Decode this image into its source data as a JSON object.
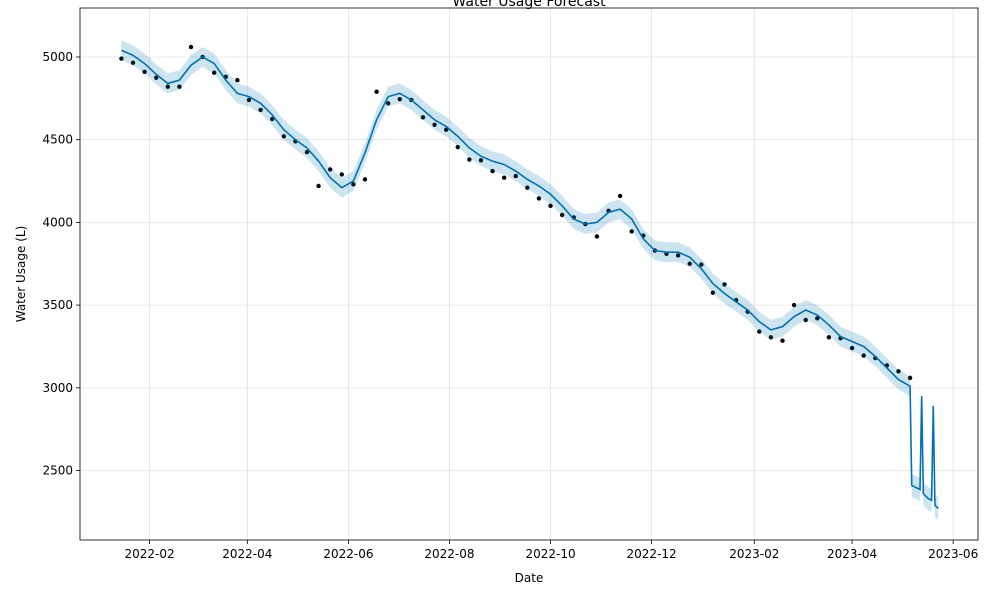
{
  "chart_data": {
    "type": "line",
    "title": "Water Usage Forecast",
    "xlabel": "Date",
    "ylabel": "Water Usage (L)",
    "xlim": [
      18982,
      19524
    ],
    "ylim": [
      2080,
      5296
    ],
    "xticks": [
      {
        "value": 19024,
        "label": "2022-02"
      },
      {
        "value": 19083,
        "label": "2022-04"
      },
      {
        "value": 19144,
        "label": "2022-06"
      },
      {
        "value": 19205,
        "label": "2022-08"
      },
      {
        "value": 19266,
        "label": "2022-10"
      },
      {
        "value": 19327,
        "label": "2022-12"
      },
      {
        "value": 19389,
        "label": "2023-02"
      },
      {
        "value": 19448,
        "label": "2023-04"
      },
      {
        "value": 19509,
        "label": "2023-06"
      }
    ],
    "yticks": [
      2500,
      3000,
      3500,
      4000,
      4500,
      5000
    ],
    "grid": true,
    "series": [
      {
        "style": "points",
        "color": "#000000",
        "x": [
          19007,
          19014,
          19021,
          19028,
          19035,
          19042,
          19049,
          19056,
          19063,
          19070,
          19077,
          19084,
          19091,
          19098,
          19105,
          19112,
          19119,
          19126,
          19133,
          19140,
          19147,
          19154,
          19161,
          19168,
          19175,
          19182,
          19189,
          19196,
          19203,
          19210,
          19217,
          19224,
          19231,
          19238,
          19245,
          19252,
          19259,
          19266,
          19273,
          19280,
          19287,
          19294,
          19301,
          19308,
          19315,
          19322,
          19329,
          19336,
          19343,
          19350,
          19357,
          19364,
          19371,
          19378,
          19385,
          19392,
          19399,
          19406,
          19413,
          19420,
          19427,
          19434,
          19441,
          19448,
          19455,
          19462,
          19469,
          19476,
          19483
        ],
        "values": [
          4990,
          4965,
          4910,
          4875,
          4820,
          4820,
          5060,
          5000,
          4905,
          4880,
          4860,
          4740,
          4680,
          4625,
          4520,
          4490,
          4425,
          4220,
          4320,
          4290,
          4230,
          4260,
          4790,
          4720,
          4745,
          4740,
          4635,
          4590,
          4560,
          4455,
          4380,
          4375,
          4310,
          4270,
          4280,
          4210,
          4145,
          4100,
          4045,
          4030,
          3990,
          3915,
          4070,
          4160,
          3945,
          3920,
          3830,
          3810,
          3800,
          3750,
          3745,
          3575,
          3625,
          3530,
          3460,
          3340,
          3305,
          3285,
          3500,
          3410,
          3420,
          3305,
          3300,
          3240,
          3195,
          3180,
          3135,
          3100,
          3060
        ]
      },
      {
        "style": "line",
        "color": "#0072B2",
        "x": [
          19007,
          19014,
          19021,
          19028,
          19035,
          19042,
          19049,
          19056,
          19063,
          19070,
          19077,
          19084,
          19091,
          19098,
          19105,
          19112,
          19119,
          19126,
          19133,
          19140,
          19147,
          19154,
          19161,
          19168,
          19175,
          19182,
          19189,
          19196,
          19203,
          19210,
          19217,
          19224,
          19231,
          19238,
          19245,
          19252,
          19259,
          19266,
          19273,
          19280,
          19287,
          19294,
          19301,
          19308,
          19315,
          19322,
          19329,
          19336,
          19343,
          19350,
          19357,
          19364,
          19371,
          19378,
          19385,
          19392,
          19399,
          19406,
          19413,
          19420,
          19427,
          19434,
          19441,
          19448,
          19455,
          19462,
          19469,
          19476,
          19483,
          19484,
          19485,
          19486,
          19487,
          19488,
          19489,
          19490,
          19491,
          19492,
          19493,
          19494,
          19495,
          19496,
          19497,
          19498,
          19499,
          19500
        ],
        "values": [
          5040,
          5010,
          4960,
          4895,
          4840,
          4860,
          4950,
          5000,
          4960,
          4860,
          4780,
          4760,
          4720,
          4650,
          4560,
          4500,
          4450,
          4370,
          4270,
          4210,
          4250,
          4420,
          4620,
          4760,
          4780,
          4740,
          4680,
          4620,
          4580,
          4520,
          4450,
          4400,
          4370,
          4350,
          4310,
          4260,
          4220,
          4170,
          4100,
          4020,
          3990,
          4000,
          4060,
          4080,
          4020,
          3900,
          3830,
          3820,
          3820,
          3790,
          3720,
          3630,
          3570,
          3520,
          3470,
          3400,
          3350,
          3370,
          3430,
          3470,
          3440,
          3380,
          3310,
          3280,
          3250,
          3190,
          3120,
          3050,
          3010,
          2410,
          2405,
          2400,
          2395,
          2390,
          2385,
          2950,
          2360,
          2350,
          2340,
          2330,
          2325,
          2320,
          2890,
          2290,
          2280,
          2270
        ],
        "upper": [
          5100,
          5070,
          5020,
          4955,
          4900,
          4920,
          5010,
          5060,
          5020,
          4920,
          4840,
          4820,
          4780,
          4710,
          4620,
          4560,
          4510,
          4430,
          4330,
          4270,
          4310,
          4480,
          4680,
          4820,
          4840,
          4800,
          4740,
          4680,
          4640,
          4580,
          4510,
          4460,
          4430,
          4410,
          4370,
          4320,
          4280,
          4230,
          4160,
          4080,
          4050,
          4060,
          4120,
          4140,
          4080,
          3960,
          3890,
          3880,
          3880,
          3850,
          3780,
          3690,
          3630,
          3580,
          3530,
          3460,
          3410,
          3430,
          3490,
          3530,
          3500,
          3440,
          3370,
          3340,
          3310,
          3250,
          3180,
          3110,
          3070,
          2480,
          2475,
          2470,
          2465,
          2460,
          2455,
          3020,
          2430,
          2420,
          2410,
          2400,
          2395,
          2390,
          2960,
          2360,
          2350,
          2340
        ],
        "lower": [
          4980,
          4950,
          4900,
          4835,
          4780,
          4800,
          4890,
          4940,
          4900,
          4800,
          4720,
          4700,
          4660,
          4590,
          4500,
          4440,
          4390,
          4310,
          4210,
          4150,
          4190,
          4360,
          4560,
          4700,
          4720,
          4680,
          4620,
          4560,
          4520,
          4460,
          4390,
          4340,
          4310,
          4290,
          4250,
          4200,
          4160,
          4110,
          4040,
          3960,
          3930,
          3940,
          4000,
          4020,
          3960,
          3840,
          3770,
          3760,
          3760,
          3730,
          3660,
          3570,
          3510,
          3460,
          3410,
          3340,
          3290,
          3310,
          3370,
          3410,
          3380,
          3320,
          3250,
          3220,
          3190,
          3130,
          3060,
          2990,
          2950,
          2340,
          2335,
          2330,
          2325,
          2320,
          2315,
          2880,
          2290,
          2280,
          2270,
          2260,
          2255,
          2250,
          2820,
          2220,
          2210,
          2200
        ]
      }
    ]
  }
}
